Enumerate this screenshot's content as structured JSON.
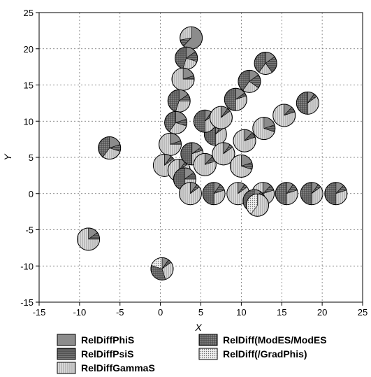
{
  "chart_data": {
    "type": "scatter",
    "subtype": "pie-markers",
    "xlabel": "X",
    "ylabel": "Y",
    "xlim": [
      -15,
      25
    ],
    "ylim": [
      -15,
      25
    ],
    "xticks": [
      -15,
      -10,
      -5,
      0,
      5,
      10,
      15,
      20,
      25
    ],
    "yticks": [
      -15,
      -10,
      -5,
      0,
      5,
      10,
      15,
      20,
      25
    ],
    "grid": true,
    "grid_style": "dashed",
    "legend_position": "bottom",
    "series": [
      {
        "name": "RelDiffPhiS",
        "color": "#8c8c8c",
        "pattern": "solid"
      },
      {
        "name": "RelDiffPsiS",
        "color": "#5a5a5a",
        "pattern": "horizontal-lines"
      },
      {
        "name": "RelDiffGammaS",
        "color": "#c8c8c8",
        "pattern": "vertical-lines"
      },
      {
        "name": "RelDiff(ModES/ModES",
        "color": "#6e6e6e",
        "pattern": "grid"
      },
      {
        "name": "RelDiff(/GradPhis)",
        "color": "#d8d8d8",
        "pattern": "dots"
      }
    ],
    "points": [
      {
        "x": 3.8,
        "y": 21.5,
        "slices": [
          0.62,
          0.1,
          0.28,
          0,
          0
        ]
      },
      {
        "x": 3.2,
        "y": 18.7,
        "slices": [
          0.15,
          0.15,
          0.25,
          0.45,
          0
        ]
      },
      {
        "x": 2.8,
        "y": 15.8,
        "slices": [
          0.2,
          0.05,
          0.75,
          0,
          0
        ]
      },
      {
        "x": 2.3,
        "y": 12.8,
        "slices": [
          0.15,
          0.1,
          0.3,
          0.45,
          0
        ]
      },
      {
        "x": 1.9,
        "y": 9.8,
        "slices": [
          0.2,
          0.1,
          0.3,
          0.4,
          0
        ]
      },
      {
        "x": 1.2,
        "y": 6.8,
        "slices": [
          0.2,
          0.05,
          0.75,
          0,
          0
        ]
      },
      {
        "x": 0.5,
        "y": 3.9,
        "slices": [
          0.1,
          0.05,
          0.85,
          0,
          0
        ]
      },
      {
        "x": 2.3,
        "y": 3.2,
        "slices": [
          0.1,
          0.05,
          0.85,
          0,
          0
        ]
      },
      {
        "x": 3.0,
        "y": 2.0,
        "slices": [
          0.15,
          0.1,
          0.25,
          0.5,
          0
        ]
      },
      {
        "x": 3.7,
        "y": 0.0,
        "slices": [
          0.1,
          0.05,
          0.85,
          0,
          0
        ]
      },
      {
        "x": 6.6,
        "y": 0.0,
        "slices": [
          0.1,
          0.1,
          0.3,
          0.5,
          0
        ]
      },
      {
        "x": 9.6,
        "y": 0.0,
        "slices": [
          0.1,
          0.05,
          0.85,
          0,
          0
        ]
      },
      {
        "x": 12.7,
        "y": 0.0,
        "slices": [
          0.12,
          0.08,
          0.8,
          0,
          0
        ]
      },
      {
        "x": 15.6,
        "y": 0.0,
        "slices": [
          0.1,
          0.1,
          0.3,
          0.5,
          0
        ]
      },
      {
        "x": 18.7,
        "y": 0.0,
        "slices": [
          0.1,
          0.05,
          0.35,
          0.5,
          0
        ]
      },
      {
        "x": 21.7,
        "y": 0.0,
        "slices": [
          0.12,
          0.08,
          0.3,
          0.5,
          0
        ]
      },
      {
        "x": 11.6,
        "y": -1.0,
        "slices": [
          0.1,
          0.05,
          0.35,
          0.5,
          0
        ]
      },
      {
        "x": 12.0,
        "y": -1.6,
        "slices": [
          0.0,
          0.0,
          0.6,
          0.0,
          0.4
        ]
      },
      {
        "x": 3.9,
        "y": 5.5,
        "slices": [
          0.15,
          0.05,
          0.3,
          0.5,
          0
        ]
      },
      {
        "x": 5.5,
        "y": 4.0,
        "slices": [
          0.12,
          0.08,
          0.8,
          0,
          0
        ]
      },
      {
        "x": 6.8,
        "y": 8.2,
        "slices": [
          0.1,
          0.05,
          0.35,
          0.5,
          0
        ]
      },
      {
        "x": 7.8,
        "y": 5.5,
        "slices": [
          0.1,
          0.05,
          0.85,
          0,
          0
        ]
      },
      {
        "x": 10.0,
        "y": 3.8,
        "slices": [
          0.2,
          0.1,
          0.7,
          0,
          0
        ]
      },
      {
        "x": 5.5,
        "y": 10.0,
        "slices": [
          0.1,
          0.05,
          0.35,
          0.5,
          0
        ]
      },
      {
        "x": 7.5,
        "y": 10.5,
        "slices": [
          0.1,
          0.05,
          0.85,
          0,
          0
        ]
      },
      {
        "x": 9.3,
        "y": 13.0,
        "slices": [
          0.15,
          0.05,
          0.3,
          0.5,
          0
        ]
      },
      {
        "x": 10.4,
        "y": 7.3,
        "slices": [
          0.12,
          0.08,
          0.8,
          0,
          0
        ]
      },
      {
        "x": 12.8,
        "y": 9.0,
        "slices": [
          0.2,
          0.1,
          0.7,
          0,
          0
        ]
      },
      {
        "x": 15.3,
        "y": 10.8,
        "slices": [
          0.12,
          0.08,
          0.8,
          0,
          0
        ]
      },
      {
        "x": 11.0,
        "y": 15.5,
        "slices": [
          0.15,
          0.2,
          0.25,
          0.4,
          0
        ]
      },
      {
        "x": 13.0,
        "y": 18.0,
        "slices": [
          0.15,
          0.25,
          0.2,
          0.4,
          0
        ]
      },
      {
        "x": 18.2,
        "y": 12.5,
        "slices": [
          0.1,
          0.05,
          0.35,
          0.5,
          0
        ]
      },
      {
        "x": -6.3,
        "y": 6.3,
        "slices": [
          0.2,
          0.1,
          0.3,
          0.4,
          0
        ]
      },
      {
        "x": -8.9,
        "y": -6.3,
        "slices": [
          0.15,
          0.1,
          0.75,
          0,
          0
        ]
      },
      {
        "x": 0.2,
        "y": -10.4,
        "slices": [
          0.1,
          0.05,
          0.3,
          0.35,
          0.2
        ]
      }
    ]
  }
}
